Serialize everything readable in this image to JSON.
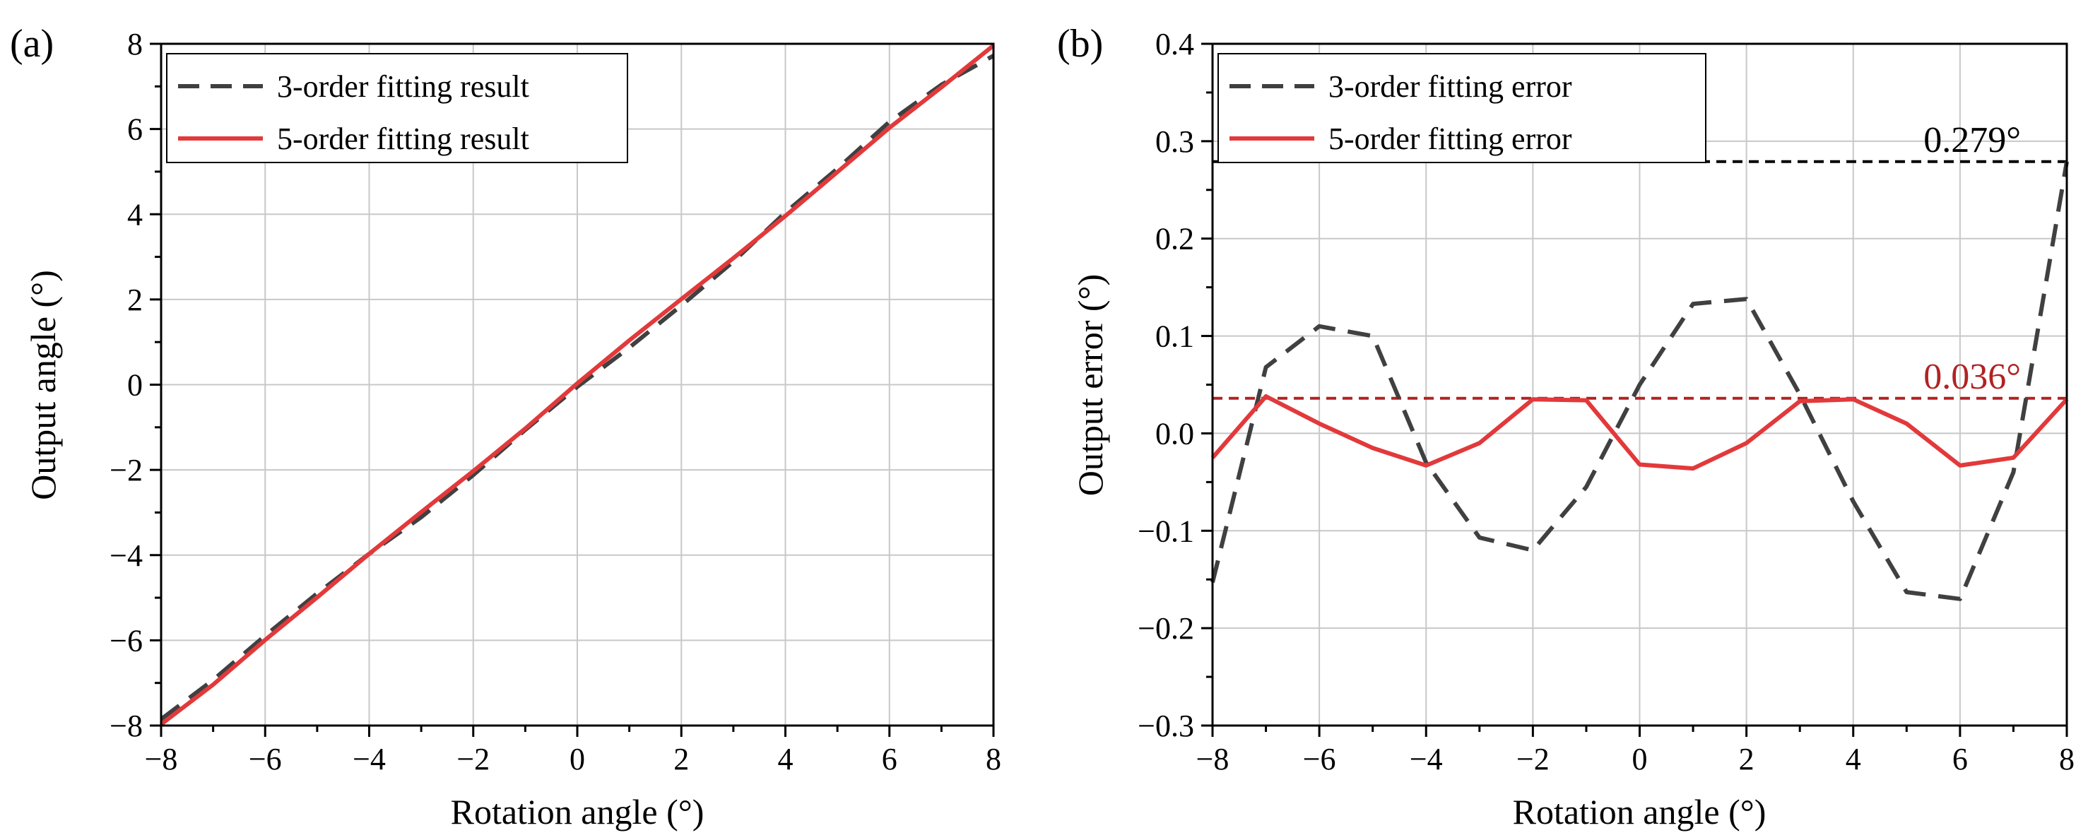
{
  "chart_data": [
    {
      "panel_label": "(a)",
      "type": "line",
      "xlabel": "Rotation angle  (°)",
      "ylabel": "Output angle (°)",
      "xlim": [
        -8,
        8
      ],
      "ylim": [
        -8,
        8
      ],
      "xticks": [
        -8,
        -6,
        -4,
        -2,
        0,
        2,
        4,
        6,
        8
      ],
      "yticks": [
        -8,
        -6,
        -4,
        -2,
        0,
        2,
        4,
        6,
        8
      ],
      "xtick_labels": [
        "−8",
        "−6",
        "−4",
        "−2",
        "0",
        "2",
        "4",
        "6",
        "8"
      ],
      "ytick_labels": [
        "−8",
        "−6",
        "−4",
        "−2",
        "0",
        "2",
        "4",
        "6",
        "8"
      ],
      "grid": true,
      "legend_position": "top-left",
      "series": [
        {
          "name": "3-order fitting result",
          "color": "#404040",
          "style": "dashed",
          "x": [
            -8,
            -7,
            -6,
            -5,
            -4,
            -3,
            -2,
            -1,
            0,
            1,
            2,
            3,
            4,
            5,
            6,
            7,
            8
          ],
          "y": [
            -7.85,
            -6.93,
            -5.89,
            -4.9,
            -3.97,
            -3.11,
            -2.12,
            -1.06,
            -0.05,
            0.87,
            1.86,
            2.89,
            4.04,
            5.07,
            6.17,
            7.04,
            7.72
          ]
        },
        {
          "name": "5-order fitting result",
          "color": "#e2393b",
          "style": "solid",
          "x": [
            -8,
            -7,
            -6,
            -5,
            -4,
            -3,
            -2,
            -1,
            0,
            1,
            2,
            3,
            4,
            5,
            6,
            7,
            8
          ],
          "y": [
            -7.97,
            -7.04,
            -5.99,
            -4.99,
            -3.97,
            -2.99,
            -2.03,
            -1.03,
            0.03,
            1.04,
            2.01,
            2.97,
            3.96,
            4.99,
            6.03,
            6.98,
            7.96
          ]
        }
      ]
    },
    {
      "panel_label": "(b)",
      "type": "line",
      "xlabel": "Rotation angle  (°)",
      "ylabel": "Output error (°)",
      "xlim": [
        -8,
        8
      ],
      "ylim": [
        -0.3,
        0.4
      ],
      "xticks": [
        -8,
        -6,
        -4,
        -2,
        0,
        2,
        4,
        6,
        8
      ],
      "yticks": [
        -0.3,
        -0.2,
        -0.1,
        0.0,
        0.1,
        0.2,
        0.3,
        0.4
      ],
      "xtick_labels": [
        "−8",
        "−6",
        "−4",
        "−2",
        "0",
        "2",
        "4",
        "6",
        "8"
      ],
      "ytick_labels": [
        "−0.3",
        "−0.2",
        "−0.1",
        "0.0",
        "0.1",
        "0.2",
        "0.3",
        "0.4"
      ],
      "grid": true,
      "legend_position": "top-left",
      "series": [
        {
          "name": "3-order fitting error",
          "color": "#404040",
          "style": "dashed",
          "x": [
            -8,
            -7,
            -6,
            -5,
            -4,
            -3,
            -2,
            -1,
            0,
            1,
            2,
            3,
            4,
            5,
            6,
            7,
            8
          ],
          "y": [
            -0.153,
            0.068,
            0.11,
            0.1,
            -0.03,
            -0.107,
            -0.12,
            -0.055,
            0.05,
            0.133,
            0.138,
            0.04,
            -0.07,
            -0.163,
            -0.17,
            -0.04,
            0.279
          ]
        },
        {
          "name": "5-order fitting error",
          "color": "#e2393b",
          "style": "solid",
          "x": [
            -8,
            -7,
            -6,
            -5,
            -4,
            -3,
            -2,
            -1,
            0,
            1,
            2,
            3,
            4,
            5,
            6,
            7,
            8
          ],
          "y": [
            -0.025,
            0.038,
            0.01,
            -0.015,
            -0.033,
            -0.01,
            0.035,
            0.034,
            -0.032,
            -0.036,
            -0.01,
            0.033,
            0.035,
            0.01,
            -0.033,
            -0.025,
            0.035
          ]
        }
      ],
      "reference_lines": [
        {
          "y": 0.279,
          "label": "0.279°",
          "color": "#000000"
        },
        {
          "y": 0.036,
          "label": "0.036°",
          "color": "#b22222"
        }
      ]
    }
  ]
}
